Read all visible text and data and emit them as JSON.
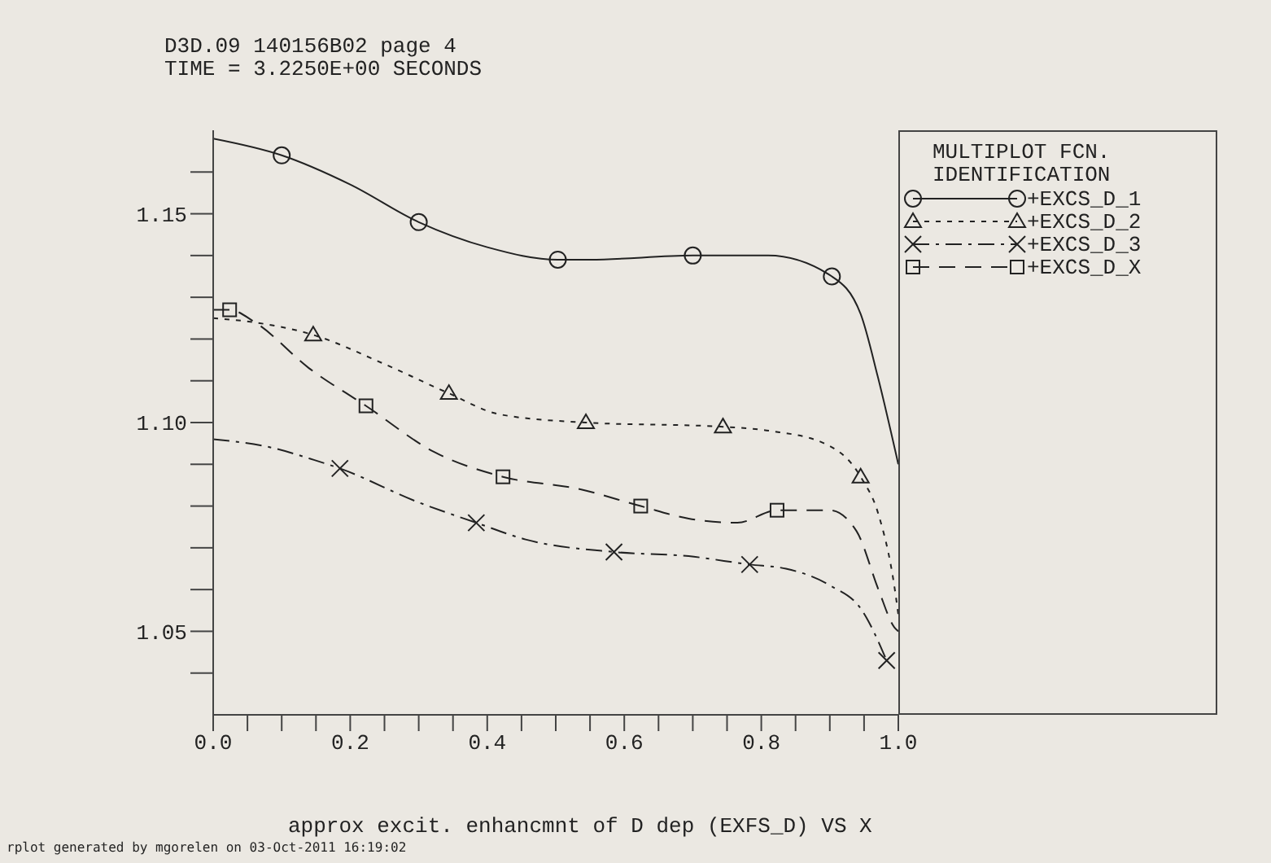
{
  "chart_data": {
    "type": "line",
    "title": "D3D.09 140156B02 page 4",
    "subtitle": "TIME = 3.2250E+00 SECONDS",
    "xlabel": "approx excit. enhancmnt of D dep (EXFS_D) VS X",
    "legend_title": "MULTIPLOT FCN. IDENTIFICATION",
    "annotations": [
      "rplot generated by mgorelen on 03-Oct-2011 16:19:02"
    ],
    "xlim": [
      0,
      1
    ],
    "ylim": [
      1.03,
      1.17
    ],
    "xticks": [
      {
        "value": 0,
        "label": "0.0"
      },
      {
        "value": 0.05,
        "label": null
      },
      {
        "value": 0.1,
        "label": null
      },
      {
        "value": 0.15,
        "label": null
      },
      0.2,
      {
        "value": 0.25,
        "label": null
      },
      {
        "value": 0.3,
        "label": null
      },
      {
        "value": 0.35,
        "label": null
      },
      0.4,
      {
        "value": 0.45,
        "label": null
      },
      {
        "value": 0.5,
        "label": null
      },
      {
        "value": 0.55,
        "label": null
      },
      0.6,
      {
        "value": 0.65,
        "label": null
      },
      {
        "value": 0.7,
        "label": null
      },
      {
        "value": 0.75,
        "label": null
      },
      0.8,
      {
        "value": 0.85,
        "label": null
      },
      {
        "value": 0.9,
        "label": null
      },
      {
        "value": 0.95,
        "label": null
      },
      {
        "value": 1,
        "label": "1.0"
      }
    ],
    "yticks": [
      {
        "value": 1.04,
        "label": null
      },
      1.05,
      {
        "value": 1.06,
        "label": null
      },
      {
        "value": 1.07,
        "label": null
      },
      {
        "value": 1.08,
        "label": null
      },
      {
        "value": 1.09,
        "label": null
      },
      {
        "value": 1.1,
        "label": "1.10"
      },
      {
        "value": 1.11,
        "label": null
      },
      {
        "value": 1.12,
        "label": null
      },
      {
        "value": 1.13,
        "label": null
      },
      {
        "value": 1.14,
        "label": null
      },
      1.15,
      {
        "value": 1.16,
        "label": null
      }
    ],
    "legend": "right",
    "series": [
      {
        "name": "+EXCS_D_1",
        "color": "#222222",
        "line_style": "solid",
        "marker": "none",
        "x": [
          0,
          0.1,
          0.2,
          0.3,
          0.4,
          0.503,
          0.55,
          0.7,
          0.81,
          0.903,
          0.945,
          0.97,
          1.0
        ],
        "values": [
          1.168,
          1.164,
          1.157,
          1.148,
          1.142,
          1.139,
          1.139,
          1.14,
          1.14,
          1.135,
          1.126,
          1.111,
          1.09
        ]
      },
      {
        "type": "scatter",
        "color": "#222222",
        "marker": "circle",
        "x": [
          0.1,
          0.3,
          0.503,
          0.7,
          0.903
        ],
        "values": [
          1.164,
          1.148,
          1.139,
          1.14,
          1.135
        ]
      },
      {
        "name": "+EXCS_D_2",
        "color": "#222222",
        "line_style": "dotted",
        "marker": "none",
        "x": [
          0,
          0.06,
          0.146,
          0.25,
          0.344,
          0.417,
          0.544,
          0.744,
          0.813,
          0.892,
          0.945,
          0.971,
          0.994,
          1.0
        ],
        "values": [
          1.125,
          1.124,
          1.121,
          1.114,
          1.107,
          1.102,
          1.1,
          1.099,
          1.098,
          1.095,
          1.087,
          1.078,
          1.061,
          1.054
        ]
      },
      {
        "type": "scatter",
        "color": "#222222",
        "marker": "triangle",
        "x": [
          0.146,
          0.344,
          0.544,
          0.744,
          0.945
        ],
        "values": [
          1.121,
          1.107,
          1.1,
          1.099,
          1.087
        ]
      },
      {
        "name": "+EXCS_D_3",
        "color": "#222222",
        "line_style": "dashdot",
        "marker": "none",
        "x": [
          0,
          0.085,
          0.148,
          0.185,
          0.298,
          0.384,
          0.456,
          0.585,
          0.694,
          0.783,
          0.836,
          0.9,
          0.947,
          0.983
        ],
        "values": [
          1.096,
          1.094,
          1.091,
          1.089,
          1.081,
          1.076,
          1.072,
          1.069,
          1.068,
          1.066,
          1.065,
          1.061,
          1.055,
          1.043
        ]
      },
      {
        "type": "scatter",
        "color": "#222222",
        "marker": "cross",
        "x": [
          0.185,
          0.384,
          0.585,
          0.783,
          0.983
        ],
        "values": [
          1.089,
          1.076,
          1.069,
          1.066,
          1.043
        ]
      },
      {
        "name": "+EXCS_D_X",
        "color": "#222222",
        "line_style": "dashed",
        "marker": "none",
        "x": [
          0,
          0.024,
          0.061,
          0.14,
          0.223,
          0.322,
          0.423,
          0.536,
          0.624,
          0.694,
          0.765,
          0.823,
          0.9,
          0.939,
          0.971,
          0.994,
          1.0
        ],
        "values": [
          1.127,
          1.127,
          1.124,
          1.113,
          1.104,
          1.093,
          1.087,
          1.084,
          1.08,
          1.077,
          1.076,
          1.079,
          1.079,
          1.074,
          1.06,
          1.051,
          1.05
        ]
      },
      {
        "type": "scatter",
        "color": "#222222",
        "marker": "square",
        "x": [
          0.024,
          0.223,
          0.423,
          0.624,
          0.823
        ],
        "values": [
          1.127,
          1.104,
          1.087,
          1.08,
          1.079
        ]
      }
    ]
  }
}
